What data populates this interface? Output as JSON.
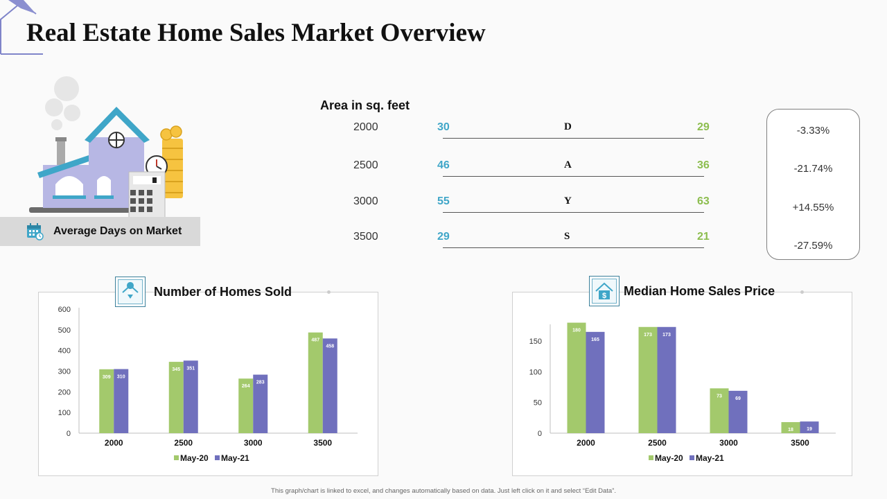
{
  "page": {
    "title": "Real Estate Home Sales Market Overview",
    "footnote": "This graph/chart is linked to excel, and changes automatically based on data. Just left click on it and select “Edit Data”."
  },
  "colors": {
    "may20": "#a3c96c",
    "may21": "#7070bd",
    "blue_value": "#3fa6c8",
    "green_value": "#8cbd4e",
    "icon_accent": "#3fa6c8"
  },
  "days_on_market": {
    "label": "Average Days on Market",
    "icon": "calendar-icon"
  },
  "area_table": {
    "heading": "Area in sq. feet",
    "rows": [
      {
        "size": "2000",
        "may20": "30",
        "letter": "D",
        "may21": "29",
        "change": "-3.33%"
      },
      {
        "size": "2500",
        "may20": "46",
        "letter": "A",
        "may21": "36",
        "change": "-21.74%"
      },
      {
        "size": "3000",
        "may20": "55",
        "letter": "Y",
        "may21": "63",
        "change": "+14.55%"
      },
      {
        "size": "3500",
        "may20": "29",
        "letter": "S",
        "may21": "21",
        "change": "-27.59%"
      }
    ]
  },
  "chart_data": [
    {
      "type": "bar",
      "title": "Number of Homes Sold",
      "icon": "location-pin-icon",
      "categories": [
        "2000",
        "2500",
        "3000",
        "3500"
      ],
      "series": [
        {
          "name": "May-20",
          "values": [
            309,
            345,
            264,
            487
          ]
        },
        {
          "name": "May-21",
          "values": [
            310,
            351,
            283,
            458
          ]
        }
      ],
      "ylim": [
        0,
        600
      ],
      "yticks": [
        "0",
        "100",
        "200",
        "300",
        "400",
        "500",
        "600"
      ],
      "legend": "bottom",
      "grid": false
    },
    {
      "type": "bar",
      "title": "Median Home Sales Price",
      "icon": "house-dollar-icon",
      "categories": [
        "2000",
        "2500",
        "3000",
        "3500"
      ],
      "series": [
        {
          "name": "May-20",
          "values": [
            180,
            173,
            73,
            18
          ]
        },
        {
          "name": "May-21",
          "values": [
            165,
            173,
            69,
            19
          ]
        }
      ],
      "ylim": [
        0,
        175
      ],
      "yticks": [
        "0",
        "50",
        "100",
        "150"
      ],
      "legend": "bottom",
      "grid": false
    }
  ]
}
